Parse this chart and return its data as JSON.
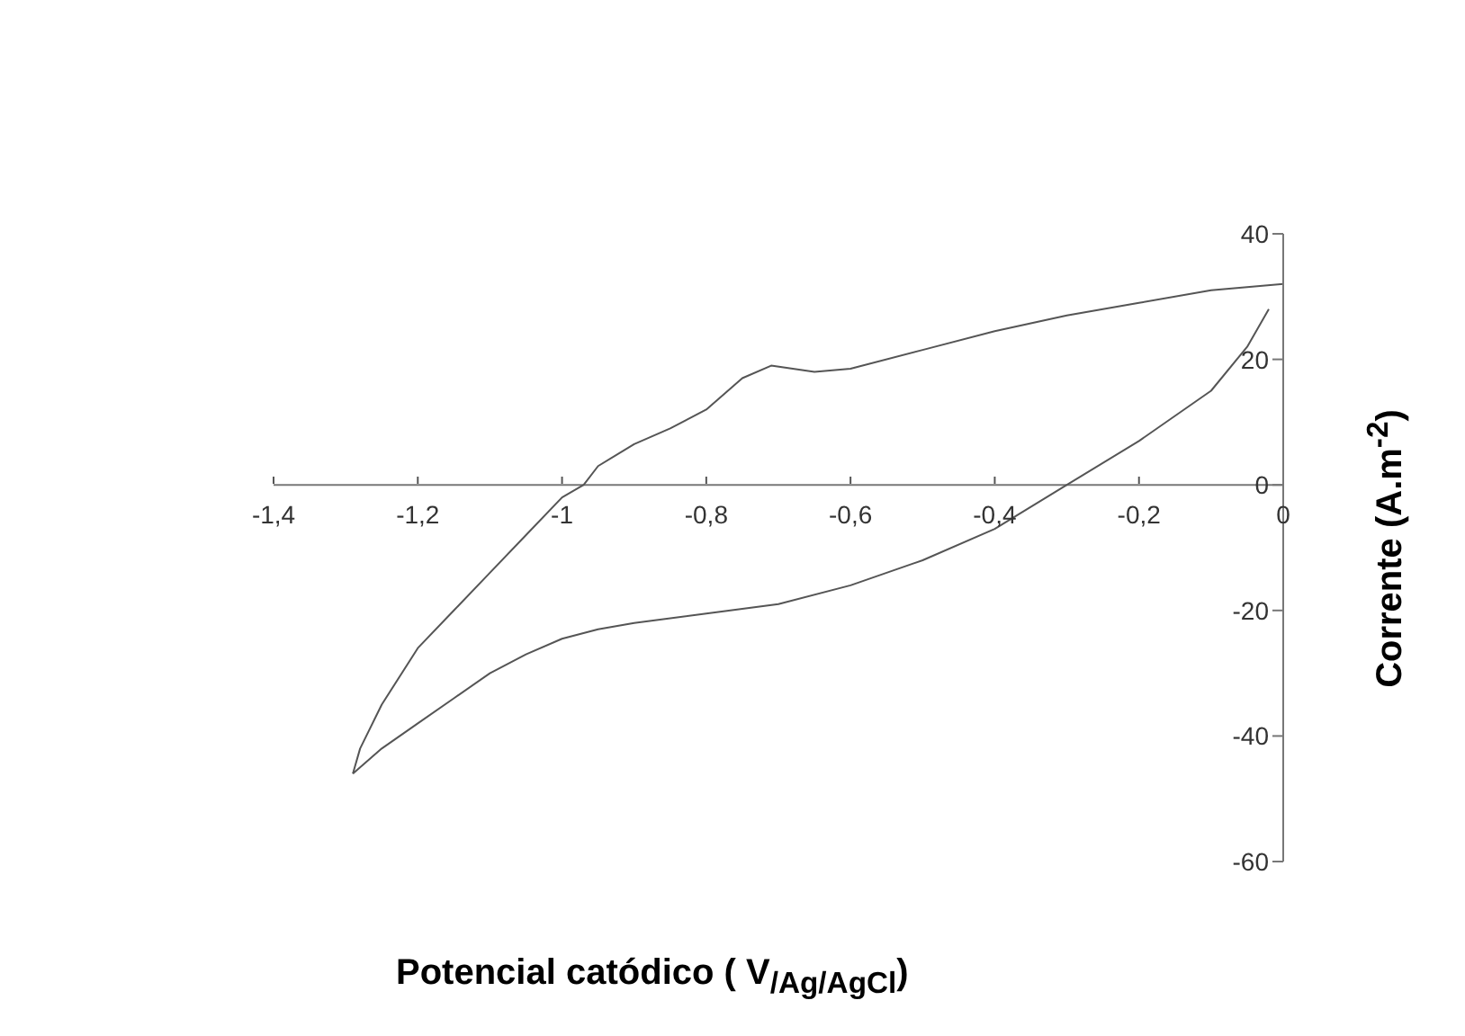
{
  "chart_data": {
    "type": "line",
    "xlabel": "Potencial catódico ( V$_{/Ag/AgCl}$)",
    "ylabel": "Corrente (A.m$^{-2}$)",
    "xlim": [
      -1.4,
      0
    ],
    "xticks": [
      {
        "value": -1.4,
        "label": "-1,4"
      },
      {
        "value": -1.2,
        "label": "-1,2"
      },
      {
        "value": -1,
        "label": "-1"
      },
      {
        "value": -0.8,
        "label": "-0,8"
      },
      {
        "value": -0.6,
        "label": "-0,6"
      },
      {
        "value": -0.4,
        "label": "-0,4"
      },
      {
        "value": -0.2,
        "label": "-0,2"
      },
      0
    ],
    "ylim": [
      -60,
      40
    ],
    "yticks": [
      -60,
      -40,
      -20,
      0,
      20,
      40
    ],
    "grid": false,
    "legend": false,
    "marker": "none",
    "line_style": "solid",
    "series": [
      {
        "color": "#555555",
        "x": [
          0,
          -0.1,
          -0.2,
          -0.3,
          -0.4,
          -0.5,
          -0.6,
          -0.65,
          -0.71,
          -0.75,
          -0.8,
          -0.85,
          -0.9,
          -0.95,
          -0.97,
          -1.0,
          -1.05,
          -1.1,
          -1.15,
          -1.2,
          -1.25,
          -1.28,
          -1.29
        ],
        "values": [
          32,
          31,
          29,
          27,
          24.5,
          21.5,
          18.5,
          18,
          19,
          17,
          12,
          9,
          6.5,
          3,
          0,
          -2,
          -8,
          -14,
          -20,
          -26,
          -35,
          -42,
          -46
        ]
      },
      {
        "color": "#555555",
        "x": [
          -1.29,
          -1.25,
          -1.2,
          -1.15,
          -1.1,
          -1.05,
          -1.0,
          -0.95,
          -0.9,
          -0.8,
          -0.7,
          -0.6,
          -0.5,
          -0.4,
          -0.3,
          -0.2,
          -0.1,
          -0.05,
          -0.02
        ],
        "values": [
          -46,
          -42,
          -38,
          -34,
          -30,
          -27,
          -24.5,
          -23,
          -22,
          -20.5,
          -19,
          -16,
          -12,
          -7,
          0,
          7,
          15,
          22,
          28
        ]
      }
    ]
  }
}
